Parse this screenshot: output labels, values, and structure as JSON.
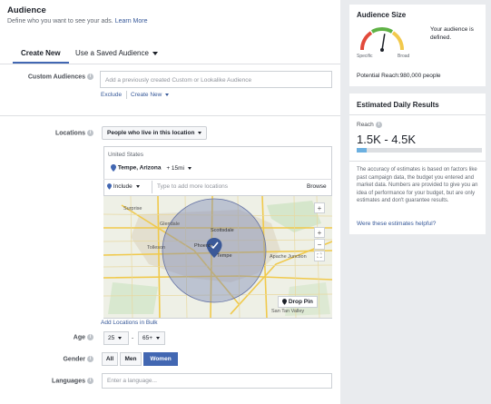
{
  "audience": {
    "title": "Audience",
    "subtitle": "Define who you want to see your ads.",
    "learn_more": "Learn More",
    "tabs": [
      {
        "label": "Create New"
      },
      {
        "label": "Use a Saved Audience"
      }
    ],
    "custom_audiences": {
      "label": "Custom Audiences",
      "placeholder": "Add a previously created Custom or Lookalike Audience",
      "exclude": "Exclude",
      "create_new": "Create New"
    },
    "locations": {
      "label": "Locations",
      "filter": "People who live in this location",
      "country": "United States",
      "city": "Tempe, Arizona",
      "radius": "+ 15mi",
      "include": "Include",
      "search_placeholder": "Type to add more locations",
      "browse": "Browse",
      "drop_pin": "Drop Pin",
      "add_bulk": "Add Locations in Bulk",
      "map_labels": {
        "surprise": "Surprise",
        "glendale": "Glendale",
        "scottsdale": "Scottsdale",
        "phoenix": "Phoenix",
        "tempe": "Tempe",
        "tolleson": "Tolleson",
        "apache_junction": "Apache Junction",
        "san_tan_valley": "San Tan Valley",
        "plus_map": "+",
        "zoom_in": "+",
        "zoom_out": "−",
        "fullscreen": "⛶"
      }
    },
    "age": {
      "label": "Age",
      "min": "25",
      "dash": "-",
      "max": "65+"
    },
    "gender": {
      "label": "Gender",
      "options": [
        "All",
        "Men",
        "Women"
      ],
      "selected": "Women"
    },
    "languages": {
      "label": "Languages",
      "placeholder": "Enter a language..."
    }
  },
  "audience_size": {
    "title": "Audience Size",
    "description": "Your audience is defined.",
    "specific": "Specific",
    "broad": "Broad",
    "potential_reach": "Potential Reach:980,000 people",
    "gauge_level": 0.55
  },
  "daily_results": {
    "title": "Estimated Daily Results",
    "reach_label": "Reach",
    "reach_value": "1.5K - 4.5K",
    "reach_bar_fraction": 0.08,
    "disclaimer": "The accuracy of estimates is based on factors like past campaign data, the budget you entered and market data. Numbers are provided to give you an idea of performance for your budget, but are only estimates and don't guarantee results.",
    "helpful_link": "Were these estimates helpful?"
  },
  "colors": {
    "accent": "#4267b2",
    "link": "#365899",
    "gauge_red": "#e24a3b",
    "gauge_yellow": "#f2c94c",
    "gauge_green": "#5fb245"
  }
}
